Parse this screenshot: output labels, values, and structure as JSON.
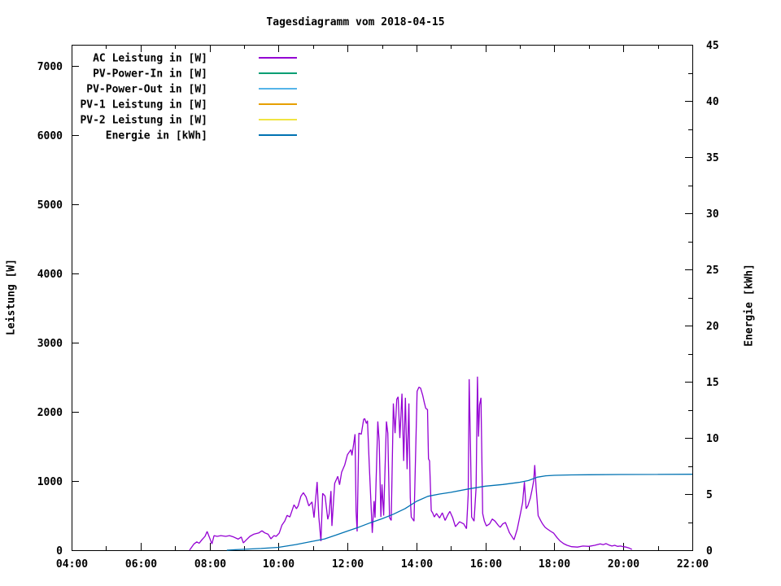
{
  "title": "Tagesdiagramm vom 2018-04-15",
  "colors": {
    "background": "#ffffff",
    "axis": "#000000",
    "text": "#000000"
  },
  "chart_data": {
    "type": "line",
    "title": "Tagesdiagramm vom 2018-04-15",
    "x_axis": {
      "range_hours": [
        4,
        22
      ],
      "major_tick_step_hours": 2,
      "minor_tick_step_hours": 1,
      "tick_labels": [
        "04:00",
        "06:00",
        "08:00",
        "10:00",
        "12:00",
        "14:00",
        "16:00",
        "18:00",
        "20:00",
        "22:00"
      ]
    },
    "y_axis_left": {
      "label": "Leistung [W]",
      "range": [
        0,
        7300
      ],
      "tick_values": [
        0,
        1000,
        2000,
        3000,
        4000,
        5000,
        6000,
        7000
      ]
    },
    "y_axis_right": {
      "label": "Energie [kWh]",
      "range": [
        0,
        45
      ],
      "tick_values": [
        0,
        5,
        10,
        15,
        20,
        25,
        30,
        35,
        40,
        45
      ],
      "minor_tick_step": 2.5
    },
    "legend_position": "top-left-inside",
    "grid": false,
    "series": [
      {
        "name": "AC Leistung in [W]",
        "color": "#9400d3",
        "axis": "left",
        "points": [
          [
            7.42,
            0
          ],
          [
            7.47,
            35
          ],
          [
            7.55,
            90
          ],
          [
            7.63,
            120
          ],
          [
            7.7,
            100
          ],
          [
            7.78,
            150
          ],
          [
            7.87,
            200
          ],
          [
            7.93,
            270
          ],
          [
            8.0,
            180
          ],
          [
            8.07,
            90
          ],
          [
            8.13,
            210
          ],
          [
            8.22,
            200
          ],
          [
            8.33,
            210
          ],
          [
            8.47,
            200
          ],
          [
            8.58,
            210
          ],
          [
            8.7,
            190
          ],
          [
            8.83,
            160
          ],
          [
            8.92,
            190
          ],
          [
            8.98,
            105
          ],
          [
            9.07,
            150
          ],
          [
            9.17,
            200
          ],
          [
            9.28,
            230
          ],
          [
            9.43,
            250
          ],
          [
            9.52,
            280
          ],
          [
            9.6,
            250
          ],
          [
            9.7,
            230
          ],
          [
            9.78,
            165
          ],
          [
            9.87,
            210
          ],
          [
            9.93,
            200
          ],
          [
            10.02,
            246
          ],
          [
            10.1,
            363
          ],
          [
            10.18,
            420
          ],
          [
            10.25,
            503
          ],
          [
            10.33,
            480
          ],
          [
            10.45,
            656
          ],
          [
            10.52,
            600
          ],
          [
            10.57,
            640
          ],
          [
            10.65,
            780
          ],
          [
            10.72,
            830
          ],
          [
            10.8,
            770
          ],
          [
            10.88,
            640
          ],
          [
            10.97,
            697
          ],
          [
            11.03,
            470
          ],
          [
            11.12,
            985
          ],
          [
            11.17,
            480
          ],
          [
            11.23,
            130
          ],
          [
            11.28,
            820
          ],
          [
            11.35,
            780
          ],
          [
            11.43,
            445
          ],
          [
            11.47,
            525
          ],
          [
            11.52,
            855
          ],
          [
            11.55,
            350
          ],
          [
            11.63,
            965
          ],
          [
            11.72,
            1066
          ],
          [
            11.77,
            945
          ],
          [
            11.83,
            1125
          ],
          [
            11.92,
            1230
          ],
          [
            12.0,
            1380
          ],
          [
            12.1,
            1452
          ],
          [
            12.13,
            1370
          ],
          [
            12.17,
            1500
          ],
          [
            12.22,
            1675
          ],
          [
            12.25,
            560
          ],
          [
            12.28,
            270
          ],
          [
            12.33,
            1690
          ],
          [
            12.4,
            1675
          ],
          [
            12.47,
            1890
          ],
          [
            12.5,
            1900
          ],
          [
            12.55,
            1830
          ],
          [
            12.58,
            1870
          ],
          [
            12.63,
            1260
          ],
          [
            12.72,
            250
          ],
          [
            12.77,
            710
          ],
          [
            12.8,
            470
          ],
          [
            12.88,
            1860
          ],
          [
            12.92,
            1570
          ],
          [
            12.97,
            480
          ],
          [
            13.0,
            950
          ],
          [
            13.05,
            500
          ],
          [
            13.13,
            1860
          ],
          [
            13.17,
            1690
          ],
          [
            13.22,
            470
          ],
          [
            13.27,
            430
          ],
          [
            13.33,
            2120
          ],
          [
            13.38,
            1690
          ],
          [
            13.43,
            2180
          ],
          [
            13.47,
            2215
          ],
          [
            13.52,
            1620
          ],
          [
            13.58,
            2260
          ],
          [
            13.63,
            1290
          ],
          [
            13.68,
            2200
          ],
          [
            13.73,
            1170
          ],
          [
            13.78,
            2120
          ],
          [
            13.82,
            760
          ],
          [
            13.85,
            480
          ],
          [
            13.93,
            420
          ],
          [
            14.02,
            2295
          ],
          [
            14.07,
            2355
          ],
          [
            14.12,
            2340
          ],
          [
            14.18,
            2240
          ],
          [
            14.23,
            2130
          ],
          [
            14.27,
            2050
          ],
          [
            14.32,
            2030
          ],
          [
            14.35,
            1320
          ],
          [
            14.38,
            1290
          ],
          [
            14.43,
            570
          ],
          [
            14.47,
            540
          ],
          [
            14.52,
            480
          ],
          [
            14.58,
            530
          ],
          [
            14.67,
            466
          ],
          [
            14.75,
            540
          ],
          [
            14.83,
            430
          ],
          [
            14.92,
            520
          ],
          [
            14.97,
            560
          ],
          [
            15.05,
            470
          ],
          [
            15.13,
            340
          ],
          [
            15.25,
            410
          ],
          [
            15.37,
            380
          ],
          [
            15.45,
            310
          ],
          [
            15.5,
            800
          ],
          [
            15.53,
            2470
          ],
          [
            15.57,
            1440
          ],
          [
            15.6,
            480
          ],
          [
            15.67,
            420
          ],
          [
            15.73,
            900
          ],
          [
            15.77,
            2507
          ],
          [
            15.8,
            1640
          ],
          [
            15.83,
            2100
          ],
          [
            15.87,
            2200
          ],
          [
            15.92,
            530
          ],
          [
            15.97,
            420
          ],
          [
            16.03,
            350
          ],
          [
            16.12,
            380
          ],
          [
            16.2,
            450
          ],
          [
            16.28,
            420
          ],
          [
            16.37,
            360
          ],
          [
            16.43,
            330
          ],
          [
            16.5,
            380
          ],
          [
            16.58,
            400
          ],
          [
            16.7,
            250
          ],
          [
            16.83,
            150
          ],
          [
            16.92,
            300
          ],
          [
            17.02,
            540
          ],
          [
            17.08,
            690
          ],
          [
            17.13,
            985
          ],
          [
            17.18,
            600
          ],
          [
            17.23,
            640
          ],
          [
            17.3,
            750
          ],
          [
            17.35,
            867
          ],
          [
            17.4,
            1000
          ],
          [
            17.43,
            1230
          ],
          [
            17.47,
            900
          ],
          [
            17.5,
            700
          ],
          [
            17.53,
            500
          ],
          [
            17.6,
            430
          ],
          [
            17.65,
            385
          ],
          [
            17.73,
            330
          ],
          [
            17.8,
            305
          ],
          [
            17.9,
            270
          ],
          [
            17.98,
            246
          ],
          [
            18.08,
            180
          ],
          [
            18.17,
            130
          ],
          [
            18.27,
            94
          ],
          [
            18.37,
            70
          ],
          [
            18.5,
            50
          ],
          [
            18.67,
            45
          ],
          [
            18.83,
            60
          ],
          [
            19.0,
            55
          ],
          [
            19.17,
            70
          ],
          [
            19.33,
            90
          ],
          [
            19.42,
            80
          ],
          [
            19.5,
            95
          ],
          [
            19.58,
            75
          ],
          [
            19.67,
            60
          ],
          [
            19.75,
            70
          ],
          [
            19.83,
            55
          ],
          [
            19.92,
            60
          ],
          [
            20.0,
            50
          ],
          [
            20.08,
            45
          ],
          [
            20.17,
            30
          ],
          [
            20.25,
            10
          ]
        ]
      },
      {
        "name": "PV-Power-In in [W]",
        "color": "#009e73",
        "axis": "left",
        "points": []
      },
      {
        "name": "PV-Power-Out in [W]",
        "color": "#56b4e9",
        "axis": "left",
        "points": []
      },
      {
        "name": "PV-1 Leistung in [W]",
        "color": "#e69f00",
        "axis": "left",
        "points": []
      },
      {
        "name": "PV-2 Leistung in [W]",
        "color": "#f0e442",
        "axis": "left",
        "points": []
      },
      {
        "name": "Energie in [kWh]",
        "color": "#0072b2",
        "axis": "right",
        "points": [
          [
            8.5,
            0
          ],
          [
            8.75,
            0.04
          ],
          [
            9.0,
            0.08
          ],
          [
            9.5,
            0.15
          ],
          [
            10.0,
            0.25
          ],
          [
            10.5,
            0.5
          ],
          [
            11.0,
            0.8
          ],
          [
            11.33,
            1.0
          ],
          [
            11.67,
            1.35
          ],
          [
            12.0,
            1.7
          ],
          [
            12.33,
            2.05
          ],
          [
            12.67,
            2.45
          ],
          [
            13.0,
            2.8
          ],
          [
            13.33,
            3.2
          ],
          [
            13.67,
            3.7
          ],
          [
            14.0,
            4.35
          ],
          [
            14.33,
            4.8
          ],
          [
            14.67,
            5.0
          ],
          [
            15.0,
            5.15
          ],
          [
            15.5,
            5.45
          ],
          [
            16.0,
            5.7
          ],
          [
            16.5,
            5.85
          ],
          [
            17.0,
            6.05
          ],
          [
            17.25,
            6.2
          ],
          [
            17.5,
            6.5
          ],
          [
            17.75,
            6.62
          ],
          [
            18.0,
            6.67
          ],
          [
            18.5,
            6.7
          ],
          [
            19.0,
            6.72
          ],
          [
            20.0,
            6.74
          ],
          [
            21.0,
            6.75
          ],
          [
            22.0,
            6.76
          ]
        ]
      }
    ]
  }
}
